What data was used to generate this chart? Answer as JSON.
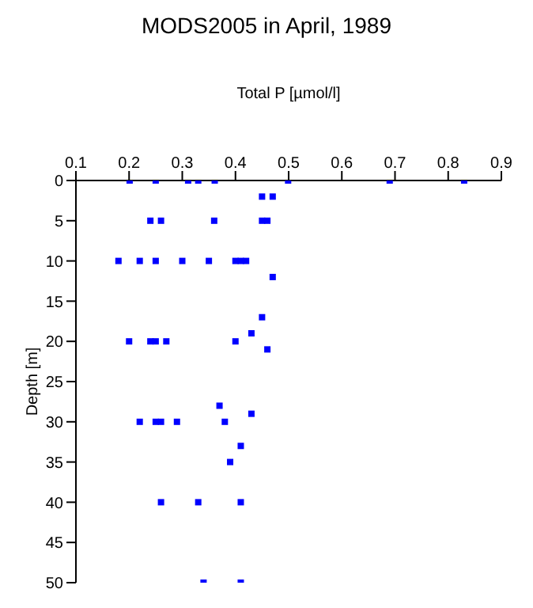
{
  "chart_data": {
    "type": "scatter",
    "title": "MODS2005 in April, 1989",
    "xlabel": "Total P [µmol/l]",
    "ylabel": "Depth [m]",
    "x": [
      0.201,
      0.25,
      0.311,
      0.33,
      0.361,
      0.499,
      0.69,
      0.83,
      0.45,
      0.47,
      0.24,
      0.26,
      0.36,
      0.45,
      0.46,
      0.18,
      0.22,
      0.25,
      0.3,
      0.35,
      0.4,
      0.41,
      0.42,
      0.47,
      0.45,
      0.43,
      0.2,
      0.24,
      0.25,
      0.27,
      0.4,
      0.46,
      0.37,
      0.43,
      0.22,
      0.25,
      0.26,
      0.29,
      0.38,
      0.41,
      0.39,
      0.26,
      0.33,
      0.41,
      0.34,
      0.41
    ],
    "values": [
      0,
      0,
      0,
      0,
      0,
      0,
      0,
      0,
      2,
      2,
      5,
      5,
      5,
      5,
      5,
      10,
      10,
      10,
      10,
      10,
      10,
      10,
      10,
      12,
      17,
      19,
      20,
      20,
      20,
      20,
      20,
      21,
      28,
      29,
      30,
      30,
      30,
      30,
      30,
      33,
      35,
      40,
      40,
      40,
      50,
      50
    ],
    "color": "#0000ff",
    "marker": "square",
    "xlim": [
      0.1,
      0.9
    ],
    "xticks": [
      0.1,
      0.2,
      0.3,
      0.4,
      0.5,
      0.6,
      0.7,
      0.8,
      0.9
    ],
    "ylim": [
      50,
      0
    ],
    "yticks": [
      0,
      5,
      10,
      15,
      20,
      25,
      30,
      35,
      40,
      45,
      50
    ],
    "grid": false
  }
}
